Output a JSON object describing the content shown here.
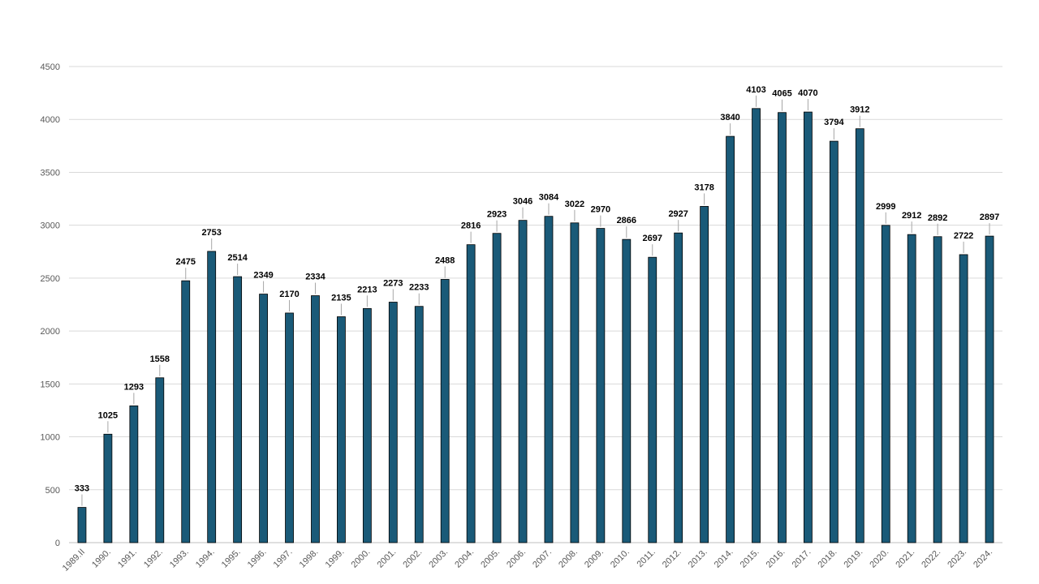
{
  "chart_data": {
    "type": "bar",
    "title": "",
    "xlabel": "",
    "ylabel": "",
    "ylim": [
      0,
      4500
    ],
    "y_ticks": [
      0,
      500,
      1000,
      1500,
      2000,
      2500,
      3000,
      3500,
      4000,
      4500
    ],
    "grid": true,
    "legend": "none",
    "bar_color": "#1a5a78",
    "categories": [
      "1989.II",
      "1990.",
      "1991.",
      "1992.",
      "1993.",
      "1994.",
      "1995.",
      "1996.",
      "1997.",
      "1998.",
      "1999.",
      "2000.",
      "2001.",
      "2002.",
      "2003.",
      "2004.",
      "2005.",
      "2006.",
      "2007.",
      "2008.",
      "2009.",
      "2010.",
      "2011.",
      "2012.",
      "2013.",
      "2014.",
      "2015.",
      "2016.",
      "2017.",
      "2018.",
      "2019.",
      "2020.",
      "2021.",
      "2022.",
      "2023.",
      "2024."
    ],
    "values": [
      333,
      1025,
      1293,
      1558,
      2475,
      2753,
      2514,
      2349,
      2170,
      2334,
      2135,
      2213,
      2273,
      2233,
      2488,
      2816,
      2923,
      3046,
      3084,
      3022,
      2970,
      2866,
      2697,
      2927,
      3178,
      3840,
      4103,
      4065,
      4070,
      3794,
      3912,
      2999,
      2912,
      2892,
      2722,
      2897
    ]
  }
}
